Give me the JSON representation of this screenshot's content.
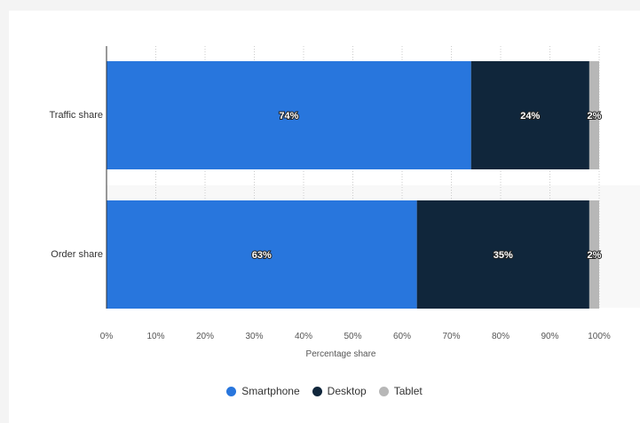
{
  "chart_data": {
    "type": "bar",
    "orientation": "horizontal",
    "stacked": true,
    "title": "",
    "xlabel": "Percentage share",
    "ylabel": "",
    "xlim": [
      0,
      100
    ],
    "xticks": [
      "0%",
      "10%",
      "20%",
      "30%",
      "40%",
      "50%",
      "60%",
      "70%",
      "80%",
      "90%",
      "100%"
    ],
    "categories": [
      "Traffic share",
      "Order share"
    ],
    "series": [
      {
        "name": "Smartphone",
        "color": "#2876dd",
        "values": [
          74,
          63
        ],
        "labels": [
          "74%",
          "63%"
        ]
      },
      {
        "name": "Desktop",
        "color": "#10263b",
        "values": [
          24,
          35
        ],
        "labels": [
          "24%",
          "35%"
        ]
      },
      {
        "name": "Tablet",
        "color": "#b7b7b7",
        "values": [
          2,
          2
        ],
        "labels": [
          "2%",
          "2%"
        ]
      }
    ],
    "grid": "vertical dotted",
    "legend_position": "bottom"
  }
}
